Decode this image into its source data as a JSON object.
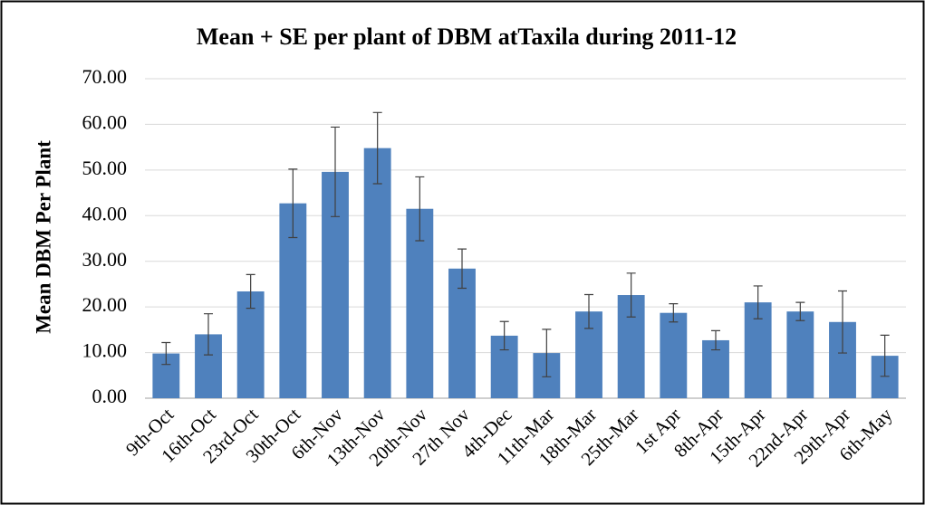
{
  "chart_data": {
    "type": "bar",
    "title": "Mean + SE per plant of DBM atTaxila during 2011-12",
    "y_label": "Mean DBM Per Plant",
    "categories": [
      "9th-Oct",
      "16th-Oct",
      "23rd-Oct",
      "30th-Oct",
      "6th-Nov",
      "13th-Nov",
      "20th-Nov",
      "27th Nov",
      "4th-Dec",
      "11th-Mar",
      "18th-Mar",
      "25th-Mar",
      "1st Apr",
      "8th-Apr",
      "15th-Apr",
      "22nd-Apr",
      "29th-Apr",
      "6th-May"
    ],
    "values": [
      9.8,
      14,
      23.4,
      42.7,
      49.6,
      54.8,
      41.5,
      28.4,
      13.7,
      9.9,
      19,
      22.6,
      18.7,
      12.7,
      21,
      19,
      16.7,
      9.3
    ],
    "errors": [
      2.4,
      4.5,
      3.7,
      7.5,
      9.8,
      7.8,
      7,
      4.3,
      3.1,
      5.2,
      3.7,
      4.8,
      2,
      2.1,
      3.6,
      2,
      6.8,
      4.5
    ],
    "color": "#4f81bd",
    "ylim": [
      0,
      70
    ],
    "yticks": [
      {
        "value": 0,
        "label": "0.00"
      },
      {
        "value": 10,
        "label": "10.00"
      },
      {
        "value": 20,
        "label": "20.00"
      },
      {
        "value": 30,
        "label": "30.00"
      },
      {
        "value": 40,
        "label": "40.00"
      },
      {
        "value": 50,
        "label": "50.00"
      },
      {
        "value": 60,
        "label": "60.00"
      },
      {
        "value": 70,
        "label": "70.00"
      }
    ],
    "grid": true
  }
}
